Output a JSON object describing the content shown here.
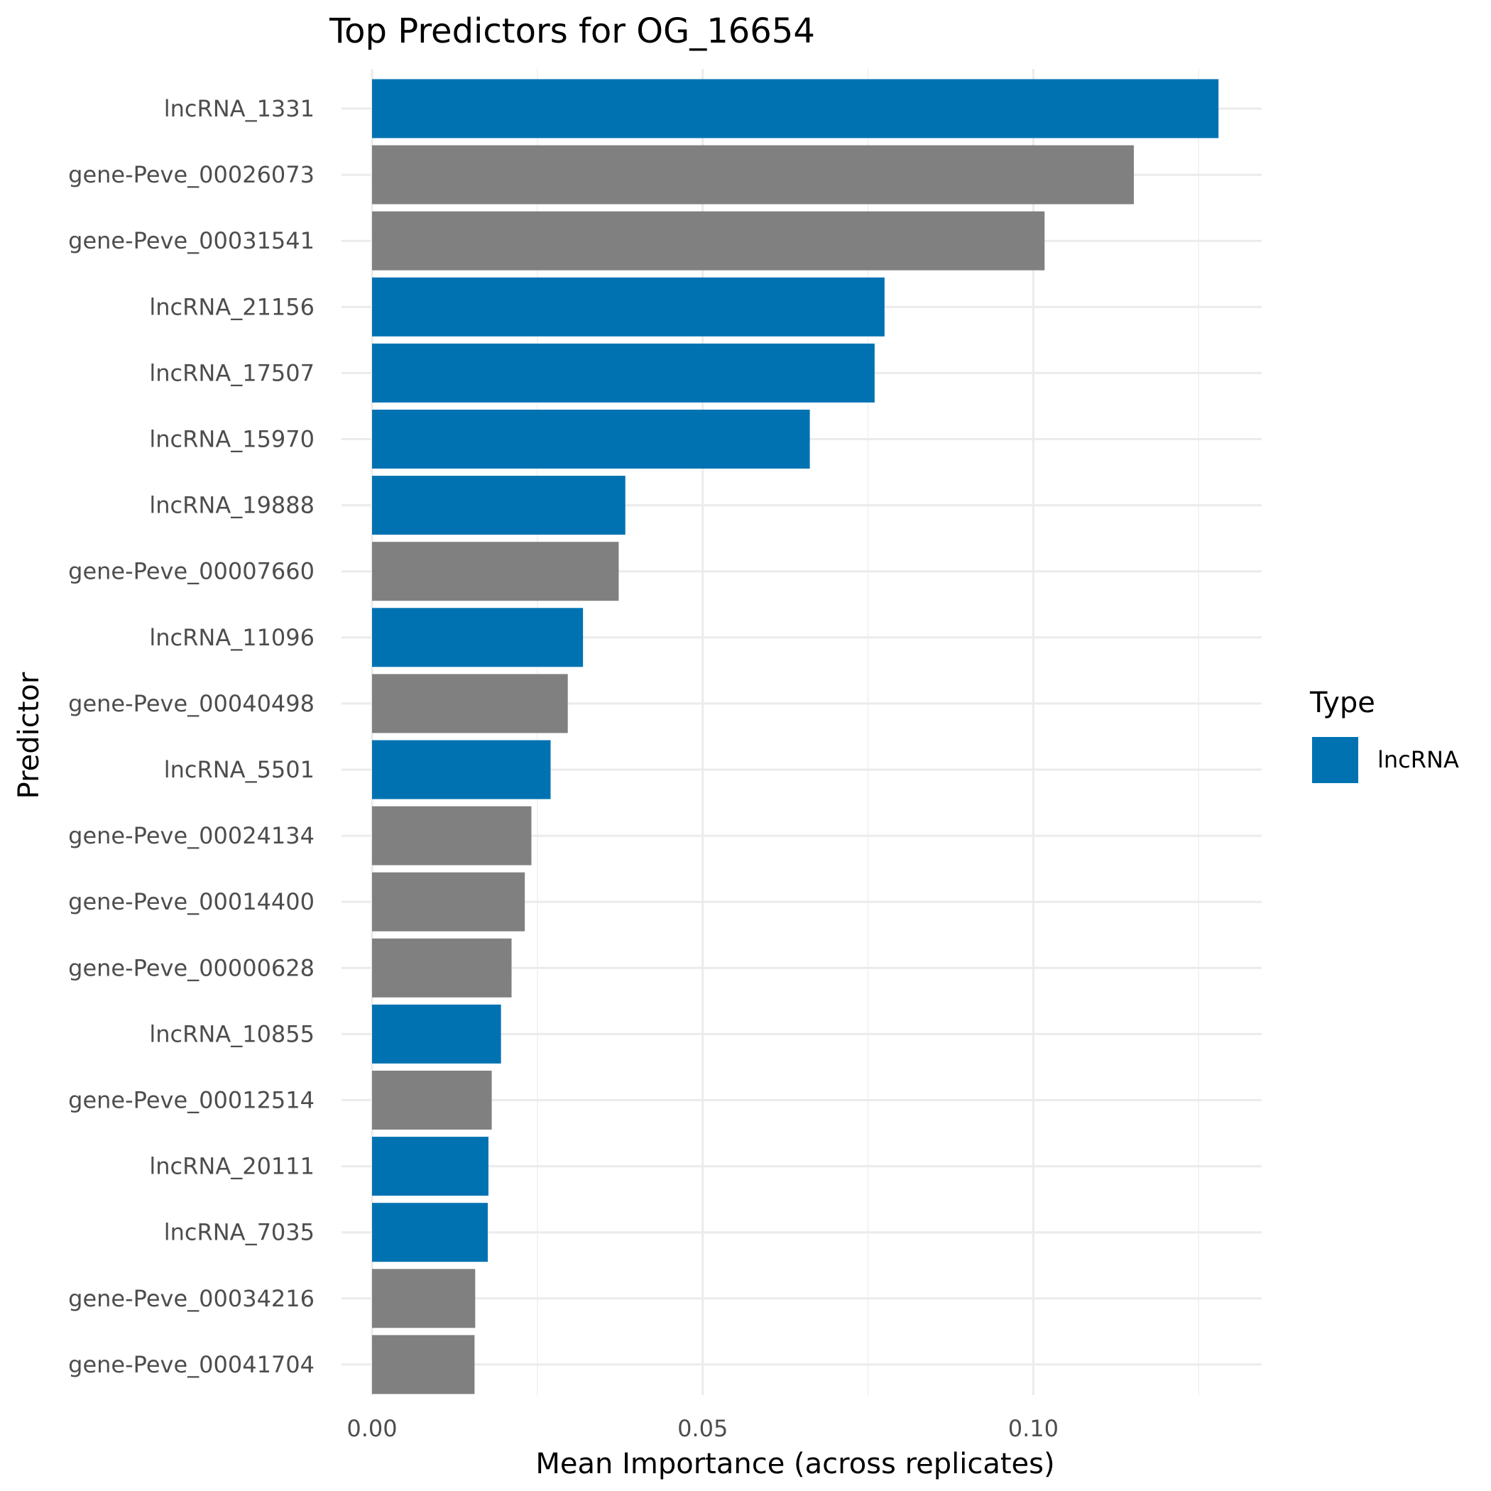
{
  "chart_data": {
    "type": "bar",
    "orientation": "horizontal",
    "title": "Top Predictors for OG_16654",
    "xlabel": "Mean Importance (across replicates)",
    "ylabel": "Predictor",
    "xlim": [
      0,
      0.135
    ],
    "xticks": [
      0.0,
      0.05,
      0.1
    ],
    "xtick_labels": [
      "0.00",
      "0.05",
      "0.10"
    ],
    "grid": true,
    "legend": {
      "title": "Type",
      "position": "right",
      "entries": [
        {
          "label": "lncRNA",
          "color": "#0072B2"
        }
      ]
    },
    "colors": {
      "lncRNA": "#0072B2",
      "gene": "#808080"
    },
    "categories": [
      "lncRNA_1331",
      "gene-Peve_00026073",
      "gene-Peve_00031541",
      "lncRNA_21156",
      "lncRNA_17507",
      "lncRNA_15970",
      "lncRNA_19888",
      "gene-Peve_00007660",
      "lncRNA_11096",
      "gene-Peve_00040498",
      "lncRNA_5501",
      "gene-Peve_00024134",
      "gene-Peve_00014400",
      "gene-Peve_00000628",
      "lncRNA_10855",
      "gene-Peve_00012514",
      "lncRNA_20111",
      "lncRNA_7035",
      "gene-Peve_00034216",
      "gene-Peve_00041704"
    ],
    "types": [
      "lncRNA",
      "gene",
      "gene",
      "lncRNA",
      "lncRNA",
      "lncRNA",
      "lncRNA",
      "gene",
      "lncRNA",
      "gene",
      "lncRNA",
      "gene",
      "gene",
      "gene",
      "lncRNA",
      "gene",
      "lncRNA",
      "lncRNA",
      "gene",
      "gene"
    ],
    "values": [
      0.128,
      0.1152,
      0.1017,
      0.0775,
      0.076,
      0.0662,
      0.0383,
      0.0373,
      0.0319,
      0.0296,
      0.027,
      0.0241,
      0.0231,
      0.0211,
      0.0195,
      0.0181,
      0.0176,
      0.0175,
      0.0156,
      0.0155
    ]
  }
}
